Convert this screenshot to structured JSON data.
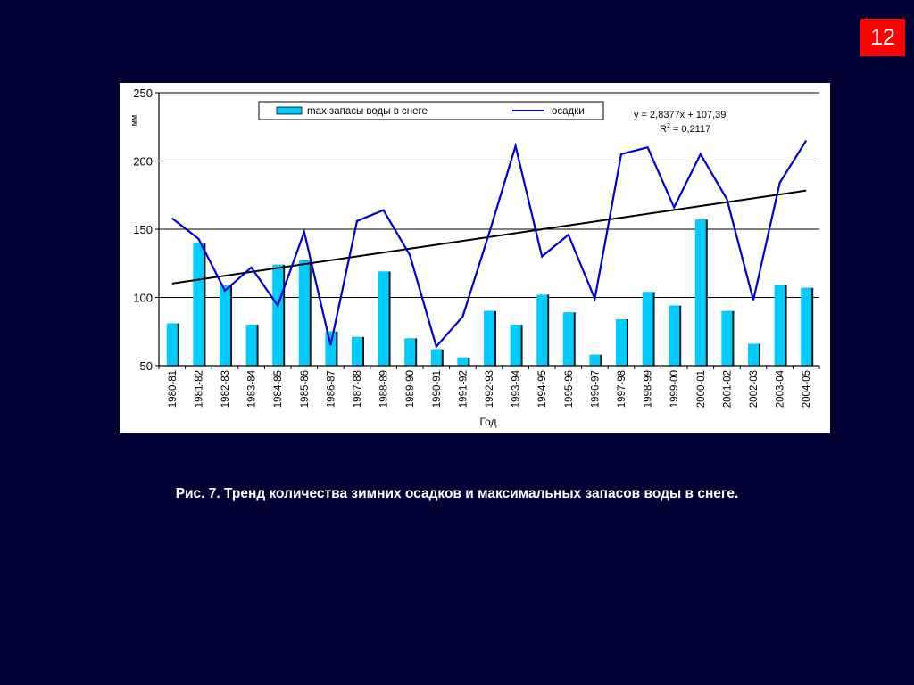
{
  "slide_number": "12",
  "caption": "Рис. 7. Тренд количества зимних осадков и максимальных запасов воды в снеге.",
  "chart_data": {
    "type": "bar",
    "xlabel": "Год",
    "ylabel": "мм",
    "ylim": [
      50,
      250
    ],
    "yticks": [
      50,
      100,
      150,
      200,
      250
    ],
    "grid": true,
    "legend_position": "top",
    "categories": [
      "1980-81",
      "1981-82",
      "1982-83",
      "1983-84",
      "1984-85",
      "1985-86",
      "1986-87",
      "1987-88",
      "1988-89",
      "1989-90",
      "1990-91",
      "1991-92",
      "1992-93",
      "1993-94",
      "1994-95",
      "1995-96",
      "1996-97",
      "1997-98",
      "1998-99",
      "1999-00",
      "2000-01",
      "2001-02",
      "2002-03",
      "2003-04",
      "2004-05"
    ],
    "series": [
      {
        "name": "max запасы воды в снеге",
        "type": "bar",
        "color": "#00ccff",
        "values": [
          81,
          140,
          109,
          80,
          124,
          127,
          75,
          71,
          119,
          70,
          62,
          56,
          90,
          80,
          102,
          89,
          58,
          84,
          104,
          94,
          157,
          90,
          66,
          109,
          107
        ]
      },
      {
        "name": "осадки",
        "type": "line",
        "color": "#0000cc",
        "values": [
          158,
          143,
          105,
          122,
          94,
          148,
          65,
          156,
          164,
          131,
          64,
          86,
          147,
          211,
          130,
          146,
          99,
          205,
          210,
          166,
          205,
          172,
          98,
          184,
          215
        ]
      }
    ],
    "trendline": {
      "slope": 2.8377,
      "intercept": 107.39,
      "color": "#000000",
      "equation": "y = 2,8377x + 107,39",
      "r2_label": "R",
      "r2_sup": "2",
      "r2_value": " = 0,2117"
    }
  }
}
